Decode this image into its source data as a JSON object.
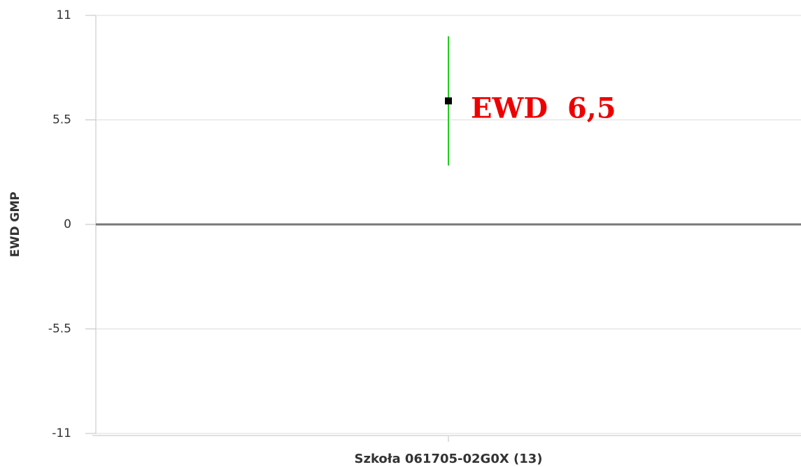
{
  "chart_data": {
    "type": "errorbar",
    "ylabel": "EWD GMP",
    "categories": [
      "Szkoła 061705-02G0X (13)"
    ],
    "values": [
      6.5
    ],
    "errors": [
      3.4
    ],
    "value_labels": [
      "EWD  6,5"
    ],
    "color": "#000000",
    "error_color": "#22cc22",
    "label_color": "#ee0000",
    "ylim": [
      -11,
      11
    ],
    "yticks": [
      11,
      5.5,
      0,
      -5.5,
      -11
    ],
    "grid": true
  }
}
